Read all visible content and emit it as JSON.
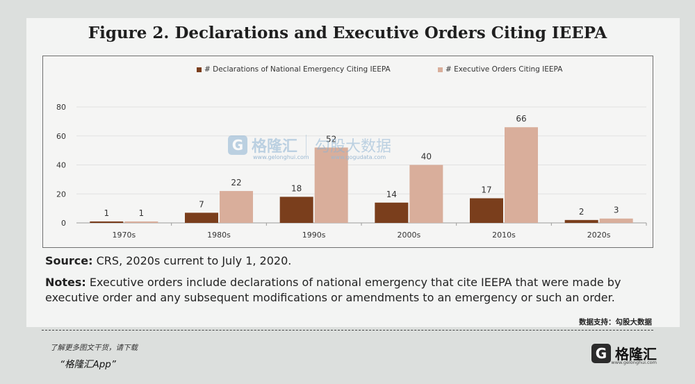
{
  "figure": {
    "title": "Figure 2. Declarations and Executive Orders Citing IEEPA"
  },
  "chart_data": {
    "type": "bar",
    "categories": [
      "1970s",
      "1980s",
      "1990s",
      "2000s",
      "2010s",
      "2020s"
    ],
    "series": [
      {
        "name": "# Declarations of National Emergency Citing IEEPA",
        "values": [
          1,
          7,
          18,
          14,
          17,
          2
        ],
        "color": "#7a3e1c"
      },
      {
        "name": "# Executive Orders Citing IEEPA",
        "values": [
          1,
          22,
          52,
          40,
          66,
          3
        ],
        "color": "#d9ae9b"
      }
    ],
    "yticks": [
      "0",
      "20",
      "40",
      "60",
      "80"
    ],
    "ylim": [
      0,
      80
    ],
    "grid": true,
    "legend_position": "top"
  },
  "source": {
    "label": "Source:",
    "text": "CRS, 2020s current to July 1, 2020."
  },
  "notes": {
    "label": "Notes:",
    "text": "Executive orders include declarations of national emergency that cite IEEPA that were made by executive order and any subsequent modifications or amendments to an emergency or such an order."
  },
  "data_support": "数据支持：勾股大数据",
  "footer": {
    "hint": "了解更多图文干货，请下载",
    "app": "“格隆汇App”"
  },
  "watermark": {
    "logo_letter": "G",
    "brand": "格隆汇",
    "brand_url": "www.gelonghui.com",
    "partner": "勾股大数据",
    "partner_url": "www.gogudata.com"
  },
  "brand": {
    "logo_letter": "G",
    "name": "格隆汇",
    "url": "www.gelonghui.com"
  }
}
